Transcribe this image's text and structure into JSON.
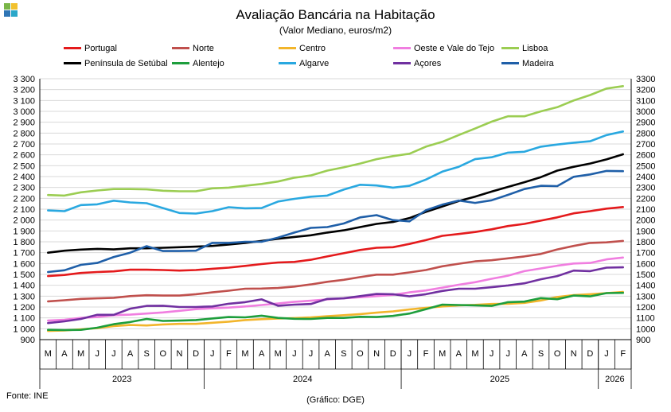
{
  "title": "Avaliação Bancária na Habitação",
  "subtitle": "(Valor Mediano, euros/m2)",
  "source": "Fonte: INE",
  "credit": "(Gráfico: DGE)",
  "logo_colors": [
    "#7ab648",
    "#f2c12e",
    "#2f75b5",
    "#2aa7c9"
  ],
  "chart_data": {
    "type": "line",
    "categories": [
      "M",
      "A",
      "M",
      "J",
      "J",
      "A",
      "S",
      "O",
      "N",
      "D",
      "J",
      "F",
      "M",
      "A",
      "M",
      "J",
      "J",
      "A",
      "S",
      "O",
      "N",
      "D",
      "J",
      "F",
      "M",
      "A",
      "M",
      "J",
      "J",
      "A",
      "S",
      "O",
      "N",
      "D",
      "J",
      "F"
    ],
    "year_labels": [
      "2023",
      "2024",
      "2025",
      "2026"
    ],
    "year_spans": [
      [
        0,
        9
      ],
      [
        10,
        21
      ],
      [
        22,
        33
      ],
      [
        34,
        35
      ]
    ],
    "ylim": [
      900,
      3300
    ],
    "y_ticks_left": [
      "900",
      "1 000",
      "1 100",
      "1 200",
      "1 300",
      "1 400",
      "1 500",
      "1 600",
      "1 700",
      "1 800",
      "1 900",
      "2 000",
      "2 100",
      "2 200",
      "2 300",
      "2 400",
      "2 500",
      "2 600",
      "2 700",
      "2 800",
      "2 900",
      "3 000",
      "3 100",
      "3 200",
      "3 300"
    ],
    "y_ticks_right": [
      "900",
      "1000",
      "1100",
      "1200",
      "1300",
      "1400",
      "1500",
      "1600",
      "1700",
      "1800",
      "1900",
      "2000",
      "2100",
      "2200",
      "2300",
      "2400",
      "2500",
      "2600",
      "2700",
      "2800",
      "2900",
      "3000",
      "3100",
      "3200",
      "3300"
    ],
    "grid": true,
    "legend_position": "top",
    "series": [
      {
        "name": "Portugal",
        "color": "#e41a1c",
        "values": [
          1485,
          1495,
          1513,
          1522,
          1528,
          1543,
          1543,
          1540,
          1535,
          1540,
          1552,
          1562,
          1578,
          1595,
          1610,
          1615,
          1635,
          1665,
          1695,
          1725,
          1745,
          1750,
          1780,
          1815,
          1855,
          1872,
          1890,
          1915,
          1945,
          1965,
          1995,
          2025,
          2062,
          2082,
          2105,
          2120
        ]
      },
      {
        "name": "Norte",
        "color": "#c0504d",
        "values": [
          1252,
          1262,
          1275,
          1280,
          1285,
          1300,
          1308,
          1305,
          1305,
          1318,
          1335,
          1350,
          1368,
          1370,
          1375,
          1388,
          1408,
          1432,
          1450,
          1475,
          1498,
          1498,
          1518,
          1540,
          1575,
          1598,
          1620,
          1630,
          1648,
          1665,
          1688,
          1730,
          1762,
          1790,
          1795,
          1808
        ]
      },
      {
        "name": "Centro",
        "color": "#f2b52b",
        "values": [
          980,
          985,
          995,
          1005,
          1025,
          1035,
          1030,
          1040,
          1045,
          1045,
          1055,
          1065,
          1080,
          1088,
          1095,
          1098,
          1105,
          1115,
          1125,
          1135,
          1148,
          1160,
          1178,
          1192,
          1205,
          1215,
          1220,
          1228,
          1230,
          1238,
          1260,
          1292,
          1310,
          1318,
          1328,
          1338
        ]
      },
      {
        "name": "Oeste e Vale do Tejo",
        "color": "#f07ee0",
        "values": [
          1075,
          1082,
          1100,
          1108,
          1125,
          1130,
          1140,
          1150,
          1165,
          1180,
          1188,
          1195,
          1205,
          1218,
          1232,
          1248,
          1258,
          1270,
          1280,
          1290,
          1300,
          1312,
          1335,
          1352,
          1378,
          1405,
          1428,
          1460,
          1488,
          1530,
          1555,
          1580,
          1600,
          1605,
          1638,
          1655
        ]
      },
      {
        "name": "Lisboa",
        "color": "#9bcd52",
        "values": [
          2230,
          2225,
          2255,
          2272,
          2285,
          2285,
          2282,
          2270,
          2265,
          2265,
          2292,
          2298,
          2315,
          2332,
          2355,
          2390,
          2410,
          2455,
          2485,
          2520,
          2560,
          2588,
          2610,
          2675,
          2720,
          2782,
          2842,
          2905,
          2955,
          2955,
          3000,
          3038,
          3100,
          3150,
          3210,
          3232
        ]
      },
      {
        "name": "Península de Setúbal",
        "color": "#000000",
        "values": [
          1700,
          1718,
          1728,
          1735,
          1730,
          1740,
          1740,
          1745,
          1750,
          1755,
          1762,
          1775,
          1790,
          1808,
          1828,
          1845,
          1860,
          1885,
          1905,
          1935,
          1965,
          1982,
          2018,
          2075,
          2125,
          2175,
          2215,
          2262,
          2305,
          2348,
          2395,
          2455,
          2490,
          2520,
          2558,
          2605
        ]
      },
      {
        "name": "Alentejo",
        "color": "#1d9e3c",
        "values": [
          990,
          988,
          990,
          1010,
          1042,
          1062,
          1090,
          1072,
          1075,
          1080,
          1095,
          1108,
          1105,
          1120,
          1100,
          1092,
          1090,
          1100,
          1100,
          1110,
          1108,
          1118,
          1140,
          1180,
          1222,
          1218,
          1215,
          1210,
          1245,
          1250,
          1282,
          1272,
          1305,
          1298,
          1328,
          1330
        ]
      },
      {
        "name": "Algarve",
        "color": "#29a8e0",
        "values": [
          2088,
          2082,
          2138,
          2145,
          2178,
          2162,
          2155,
          2110,
          2065,
          2060,
          2082,
          2118,
          2108,
          2110,
          2170,
          2195,
          2215,
          2225,
          2280,
          2325,
          2318,
          2298,
          2315,
          2372,
          2445,
          2490,
          2560,
          2578,
          2620,
          2628,
          2675,
          2695,
          2712,
          2725,
          2782,
          2815
        ]
      },
      {
        "name": "Açores",
        "color": "#7030a0",
        "values": [
          1052,
          1068,
          1090,
          1128,
          1128,
          1185,
          1210,
          1212,
          1200,
          1200,
          1205,
          1230,
          1245,
          1270,
          1212,
          1222,
          1228,
          1275,
          1280,
          1300,
          1320,
          1318,
          1298,
          1318,
          1348,
          1368,
          1368,
          1382,
          1398,
          1418,
          1455,
          1485,
          1535,
          1530,
          1562,
          1565
        ]
      },
      {
        "name": "Madeira",
        "color": "#1f5fa8",
        "values": [
          1522,
          1538,
          1588,
          1605,
          1660,
          1700,
          1760,
          1715,
          1715,
          1718,
          1790,
          1790,
          1800,
          1800,
          1838,
          1885,
          1928,
          1935,
          1968,
          2025,
          2045,
          2000,
          1988,
          2090,
          2142,
          2180,
          2158,
          2182,
          2232,
          2285,
          2315,
          2312,
          2398,
          2420,
          2452,
          2450
        ]
      }
    ],
    "legend_layout": [
      {
        "series": 0,
        "row": 0,
        "col": 0
      },
      {
        "series": 1,
        "row": 0,
        "col": 1
      },
      {
        "series": 2,
        "row": 0,
        "col": 2
      },
      {
        "series": 3,
        "row": 0,
        "col": 3
      },
      {
        "series": 4,
        "row": 0,
        "col": 4
      },
      {
        "series": 5,
        "row": 1,
        "col": 0
      },
      {
        "series": 6,
        "row": 1,
        "col": 1
      },
      {
        "series": 7,
        "row": 1,
        "col": 2
      },
      {
        "series": 8,
        "row": 1,
        "col": 3
      },
      {
        "series": 9,
        "row": 1,
        "col": 4
      }
    ]
  }
}
